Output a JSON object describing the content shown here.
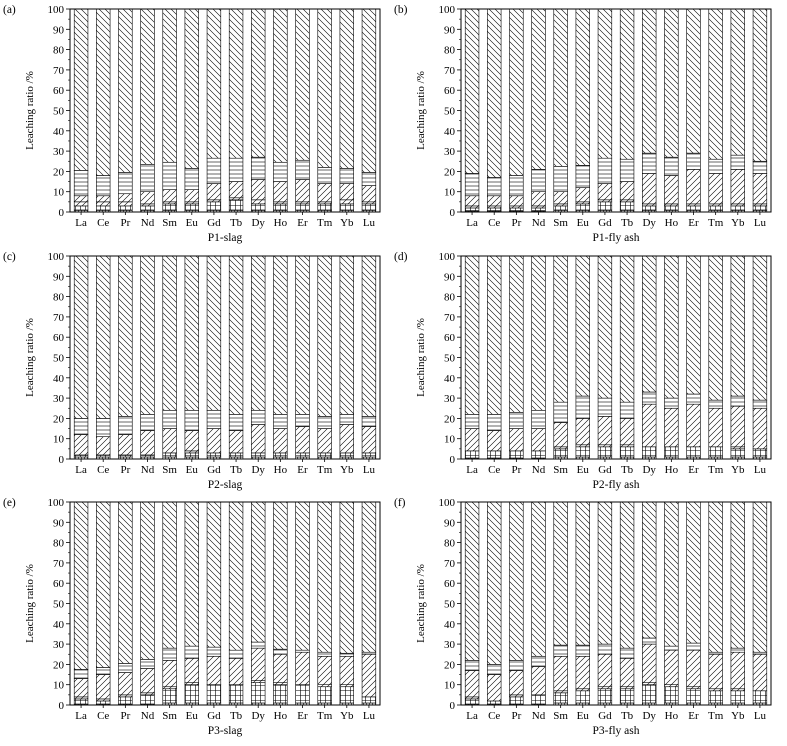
{
  "chart_data": [
    {
      "type": "bar",
      "stacked": true,
      "panel_label": "(a)",
      "xlabel": "P1-slag",
      "ylabel": "Leaching ratio  /%",
      "ylim": [
        0,
        100
      ],
      "yticks": [
        0,
        10,
        20,
        30,
        40,
        50,
        60,
        70,
        80,
        90,
        100
      ],
      "categories": [
        "La",
        "Ce",
        "Pr",
        "Nd",
        "Sm",
        "Eu",
        "Gd",
        "Tb",
        "Dy",
        "Ho",
        "Er",
        "Tm",
        "Yb",
        "Lu"
      ],
      "segments_cumulative_top": [
        [
          1,
          1,
          1,
          1,
          1,
          1,
          1,
          1,
          1,
          1,
          1,
          1,
          1,
          1
        ],
        [
          3,
          3,
          3,
          3,
          4,
          4,
          5,
          6,
          4,
          4,
          4,
          4,
          4,
          4
        ],
        [
          5,
          5,
          5,
          4,
          5,
          5,
          6,
          7,
          6,
          5,
          5,
          5,
          6,
          5
        ],
        [
          8,
          8,
          9,
          10,
          11,
          11,
          14,
          15,
          16,
          15,
          16,
          14,
          14,
          13
        ],
        [
          20.5,
          18,
          19.5,
          23.5,
          24.5,
          21.5,
          26.5,
          26.5,
          27,
          24.5,
          25.5,
          22,
          21.5,
          19.5
        ],
        [
          100,
          100,
          100,
          100,
          100,
          100,
          100,
          100,
          100,
          100,
          100,
          100,
          100,
          100
        ]
      ]
    },
    {
      "type": "bar",
      "stacked": true,
      "panel_label": "(b)",
      "xlabel": "P1-fly ash",
      "ylabel": "Leaching ratio  /%",
      "ylim": [
        0,
        100
      ],
      "yticks": [
        0,
        10,
        20,
        30,
        40,
        50,
        60,
        70,
        80,
        90,
        100
      ],
      "categories": [
        "La",
        "Ce",
        "Pr",
        "Nd",
        "Sm",
        "Eu",
        "Gd",
        "Tb",
        "Dy",
        "Ho",
        "Er",
        "Tm",
        "Yb",
        "Lu"
      ],
      "segments_cumulative_top": [
        [
          0.5,
          0.5,
          0.5,
          0.5,
          1,
          1,
          1,
          1,
          1,
          1,
          1,
          1,
          1,
          1
        ],
        [
          2,
          2,
          2,
          2,
          3,
          4,
          5,
          5,
          3,
          3,
          3,
          3,
          3,
          3
        ],
        [
          3,
          3,
          3,
          3,
          4,
          5,
          6,
          6,
          4,
          4,
          4,
          4,
          4,
          4
        ],
        [
          8,
          8,
          8,
          10,
          10,
          12,
          14,
          15,
          19,
          18,
          21,
          19,
          21,
          19
        ],
        [
          19,
          17,
          18,
          21,
          22.5,
          23,
          26.5,
          26,
          29,
          27,
          29,
          26,
          28,
          25
        ],
        [
          100,
          100,
          100,
          100,
          100,
          100,
          100,
          100,
          100,
          100,
          100,
          100,
          100,
          100
        ]
      ]
    },
    {
      "type": "bar",
      "stacked": true,
      "panel_label": "(c)",
      "xlabel": "P2-slag",
      "ylabel": "Leaching ratio  /%",
      "ylim": [
        0,
        100
      ],
      "yticks": [
        0,
        10,
        20,
        30,
        40,
        50,
        60,
        70,
        80,
        90,
        100
      ],
      "categories": [
        "La",
        "Ce",
        "Pr",
        "Nd",
        "Sm",
        "Eu",
        "Gd",
        "Tb",
        "Dy",
        "Ho",
        "Er",
        "Tm",
        "Yb",
        "Lu"
      ],
      "segments_cumulative_top": [
        [
          1,
          1,
          1,
          1,
          1,
          1,
          1,
          1,
          1,
          1,
          1,
          1,
          1,
          1
        ],
        [
          2,
          2,
          2,
          2,
          3,
          3,
          3,
          3,
          3,
          3,
          3,
          3,
          3,
          3
        ],
        [
          2,
          2,
          2,
          2,
          3,
          4,
          3,
          3,
          3,
          3,
          3,
          3,
          3,
          3
        ],
        [
          12,
          11,
          12,
          14,
          15,
          14,
          15,
          14,
          17,
          15,
          16,
          15,
          17,
          16
        ],
        [
          20,
          20,
          21,
          22,
          24,
          24,
          24,
          22,
          24,
          22,
          22,
          21,
          22,
          21
        ],
        [
          100,
          100,
          100,
          100,
          100,
          100,
          100,
          100,
          100,
          100,
          100,
          100,
          100,
          100
        ]
      ]
    },
    {
      "type": "bar",
      "stacked": true,
      "panel_label": "(d)",
      "xlabel": "P2-fly ash",
      "ylabel": "Leaching ratio  /%",
      "ylim": [
        0,
        100
      ],
      "yticks": [
        0,
        10,
        20,
        30,
        40,
        50,
        60,
        70,
        80,
        90,
        100
      ],
      "categories": [
        "La",
        "Ce",
        "Pr",
        "Nd",
        "Sm",
        "Eu",
        "Gd",
        "Tb",
        "Dy",
        "Ho",
        "Er",
        "Tm",
        "Yb",
        "Lu"
      ],
      "segments_cumulative_top": [
        [
          0.5,
          0.5,
          0.5,
          0.5,
          1,
          1,
          1,
          1,
          1,
          1,
          1,
          1,
          1,
          1
        ],
        [
          4,
          4,
          4,
          4,
          5,
          6,
          6,
          6,
          6,
          6,
          6,
          6,
          5,
          5
        ],
        [
          4,
          4,
          4,
          4,
          6,
          7,
          7,
          7,
          6,
          6,
          6,
          6,
          6,
          5
        ],
        [
          15,
          14,
          15,
          15,
          18,
          20,
          21,
          20,
          27,
          25,
          27,
          25,
          26,
          25
        ],
        [
          22,
          22,
          23,
          24,
          28,
          31,
          30,
          28,
          33,
          30,
          32,
          29,
          31,
          29
        ],
        [
          100,
          100,
          100,
          100,
          100,
          100,
          100,
          100,
          100,
          100,
          100,
          100,
          100,
          100
        ]
      ]
    },
    {
      "type": "bar",
      "stacked": true,
      "panel_label": "(e)",
      "xlabel": "P3-slag",
      "ylabel": "Leaching ratio  /%",
      "ylim": [
        0,
        100
      ],
      "yticks": [
        0,
        10,
        20,
        30,
        40,
        50,
        60,
        70,
        80,
        90,
        100
      ],
      "categories": [
        "La",
        "Ce",
        "Pr",
        "Nd",
        "Sm",
        "Eu",
        "Gd",
        "Tb",
        "Dy",
        "Ho",
        "Er",
        "Tm",
        "Yb",
        "Lu"
      ],
      "segments_cumulative_top": [
        [
          0.5,
          0.5,
          0.5,
          0.5,
          1,
          1,
          1,
          1,
          1,
          1,
          1,
          1,
          1,
          1
        ],
        [
          3,
          2,
          4,
          5,
          8,
          10,
          10,
          10,
          11,
          10,
          10,
          9,
          9,
          4
        ],
        [
          4,
          3,
          5,
          6,
          9,
          11,
          10,
          10,
          12,
          11,
          10,
          10,
          10,
          4
        ],
        [
          13,
          15,
          16,
          18,
          22,
          23,
          24,
          23,
          28,
          25,
          26,
          24,
          24,
          25
        ],
        [
          17.5,
          18.5,
          20.5,
          22.5,
          28,
          29,
          28.5,
          27,
          31,
          27.5,
          27,
          26,
          25.5,
          26
        ],
        [
          100,
          100,
          100,
          100,
          100,
          100,
          100,
          100,
          100,
          100,
          100,
          100,
          100,
          100
        ]
      ]
    },
    {
      "type": "bar",
      "stacked": true,
      "panel_label": "(f)",
      "xlabel": "P3-fly ash",
      "ylabel": "Leaching ratio  /%",
      "ylim": [
        0,
        100
      ],
      "yticks": [
        0,
        10,
        20,
        30,
        40,
        50,
        60,
        70,
        80,
        90,
        100
      ],
      "categories": [
        "La",
        "Ce",
        "Pr",
        "Nd",
        "Sm",
        "Eu",
        "Gd",
        "Tb",
        "Dy",
        "Ho",
        "Er",
        "Tm",
        "Yb",
        "Lu"
      ],
      "segments_cumulative_top": [
        [
          0.5,
          0.5,
          0.5,
          0.5,
          1,
          1,
          1,
          1,
          1,
          1,
          1,
          1,
          1,
          1
        ],
        [
          3,
          2,
          4,
          5,
          6,
          7,
          8,
          8,
          10,
          9,
          8,
          7,
          7,
          7
        ],
        [
          4,
          2,
          5,
          5,
          7,
          8,
          9,
          9,
          11,
          10,
          9,
          8,
          8,
          7
        ],
        [
          17,
          15,
          17,
          19,
          24,
          24,
          25,
          23,
          30,
          27,
          27,
          25,
          26,
          25
        ],
        [
          22,
          20,
          22,
          24,
          29.5,
          29.5,
          30,
          28,
          33,
          29,
          30.5,
          26,
          28,
          26
        ],
        [
          100,
          100,
          100,
          100,
          100,
          100,
          100,
          100,
          100,
          100,
          100,
          100,
          100,
          100
        ]
      ]
    }
  ]
}
